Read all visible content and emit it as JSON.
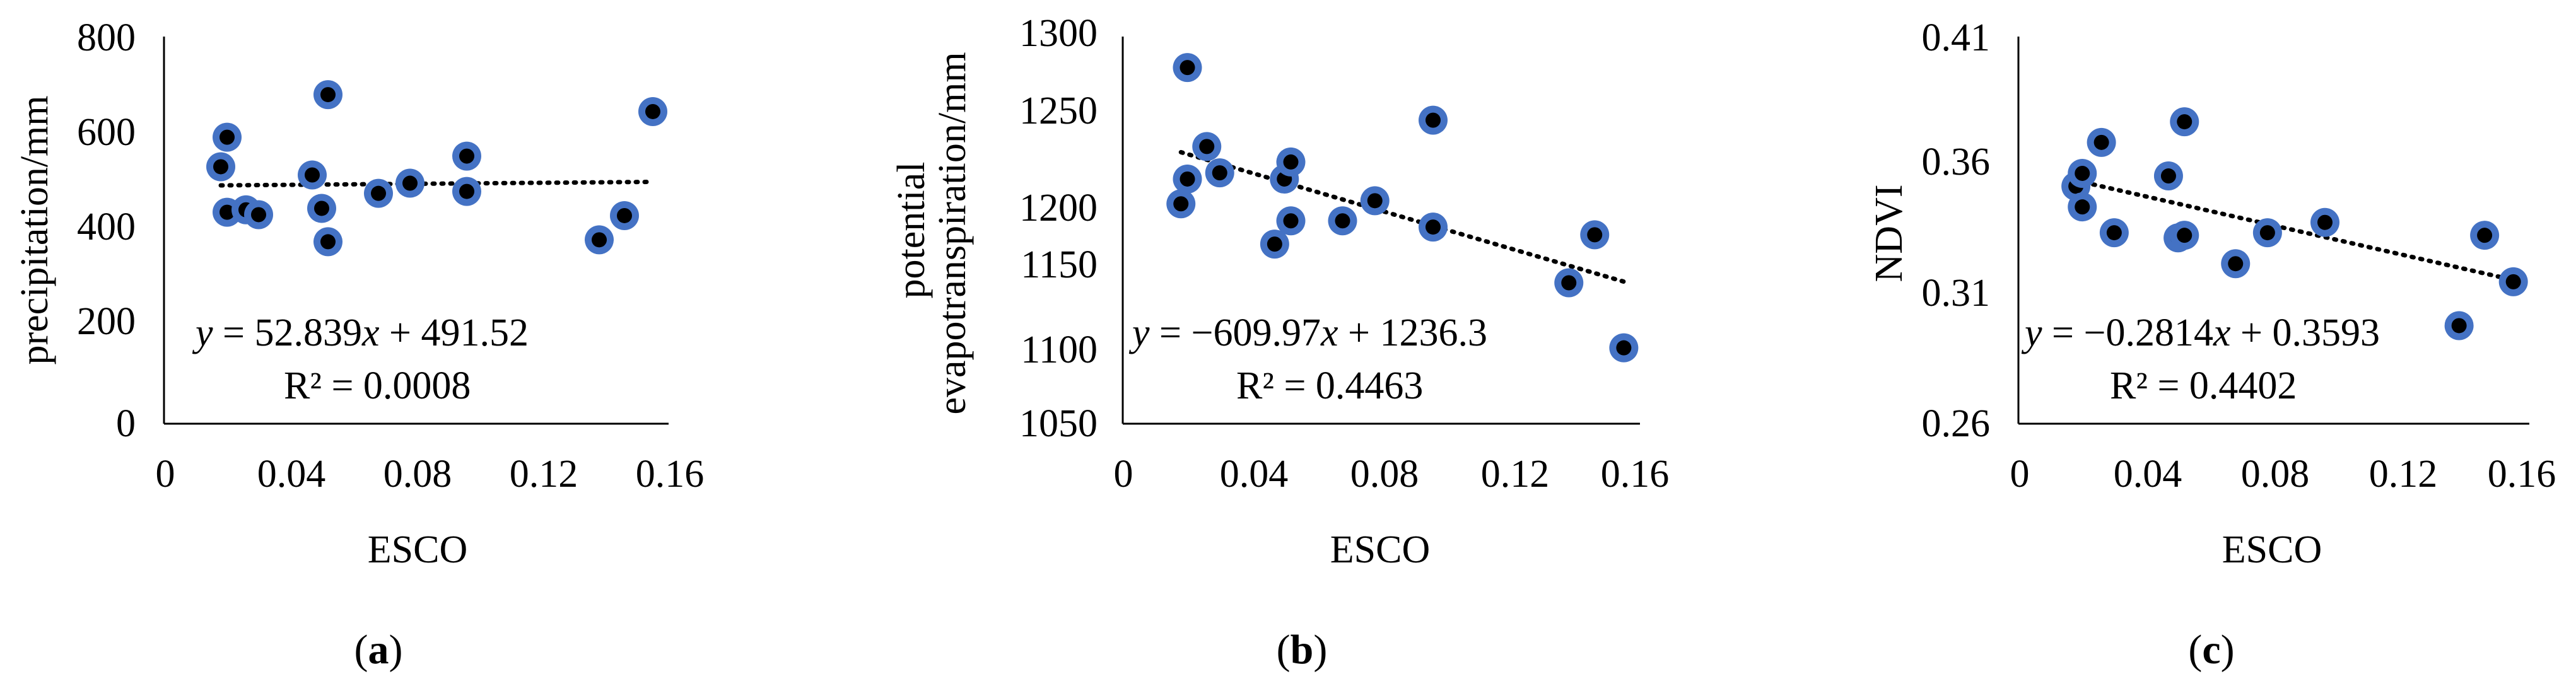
{
  "colors": {
    "marker_outer": "#4472C4",
    "marker_inner": "#000000",
    "text": "#000000"
  },
  "panels": [
    {
      "label": "a",
      "equation": {
        "y": "y",
        "rhs_1": " = 52.839",
        "x": "x",
        "rhs_2": " + 491.52"
      },
      "r2": "R² = 0.0008",
      "chart_data": {
        "type": "scatter",
        "xlabel": "ESCO",
        "ylabel": "precipitation/mm",
        "xlim": [
          0,
          0.16
        ],
        "ylim": [
          0,
          800
        ],
        "xticks": [
          0,
          0.04,
          0.08,
          0.12,
          0.16
        ],
        "xtick_labels": [
          "0",
          "0.04",
          "0.08",
          "0.12",
          "0.16"
        ],
        "yticks": [
          0,
          200,
          400,
          600,
          800
        ],
        "ytick_labels": [
          "0",
          "200",
          "400",
          "600",
          "800"
        ],
        "points": [
          [
            0.018,
            531
          ],
          [
            0.02,
            592
          ],
          [
            0.02,
            437
          ],
          [
            0.026,
            442
          ],
          [
            0.03,
            432
          ],
          [
            0.047,
            514
          ],
          [
            0.05,
            445
          ],
          [
            0.052,
            680
          ],
          [
            0.052,
            376
          ],
          [
            0.068,
            476
          ],
          [
            0.078,
            497
          ],
          [
            0.096,
            553
          ],
          [
            0.096,
            480
          ],
          [
            0.138,
            380
          ],
          [
            0.146,
            430
          ],
          [
            0.155,
            645
          ]
        ],
        "trendline": {
          "slope": 52.839,
          "intercept": 491.52,
          "x_range": [
            0.018,
            0.155
          ]
        }
      }
    },
    {
      "label": "b",
      "equation": {
        "y": "y",
        "rhs_1": " = −609.97",
        "x": "x",
        "rhs_2": " + 1236.3"
      },
      "r2": "R² = 0.4463",
      "chart_data": {
        "type": "scatter",
        "xlabel": "ESCO",
        "ylabel": "potential evapotranspiration/mm",
        "ylabel_lines": [
          "potential",
          "evapotranspiration/mm"
        ],
        "xlim": [
          0,
          0.16
        ],
        "ylim": [
          1050,
          1300
        ],
        "xticks": [
          0,
          0.04,
          0.08,
          0.12,
          0.16
        ],
        "xtick_labels": [
          "0",
          "0.04",
          "0.08",
          "0.12",
          "0.16"
        ],
        "yticks": [
          1050,
          1100,
          1150,
          1200,
          1250,
          1300
        ],
        "ytick_labels": [
          "1050",
          "1100",
          "1150",
          "1200",
          "1250",
          "1300"
        ],
        "points": [
          [
            0.018,
            1192
          ],
          [
            0.02,
            1208
          ],
          [
            0.02,
            1280
          ],
          [
            0.026,
            1229
          ],
          [
            0.03,
            1212
          ],
          [
            0.047,
            1166
          ],
          [
            0.05,
            1208
          ],
          [
            0.052,
            1219
          ],
          [
            0.052,
            1181
          ],
          [
            0.068,
            1181
          ],
          [
            0.078,
            1194
          ],
          [
            0.096,
            1246
          ],
          [
            0.096,
            1177
          ],
          [
            0.138,
            1141
          ],
          [
            0.146,
            1172
          ],
          [
            0.155,
            1099
          ]
        ],
        "trendline": {
          "slope": -609.97,
          "intercept": 1236.3,
          "x_range": [
            0.018,
            0.155
          ]
        }
      }
    },
    {
      "label": "c",
      "equation": {
        "y": "y",
        "rhs_1": " = −0.2814",
        "x": "x",
        "rhs_2": " + 0.3593"
      },
      "r2": "R² = 0.4402",
      "chart_data": {
        "type": "scatter",
        "xlabel": "ESCO",
        "ylabel": "NDVI",
        "xlim": [
          0,
          0.16
        ],
        "ylim": [
          0.26,
          0.41
        ],
        "xticks": [
          0,
          0.04,
          0.08,
          0.12,
          0.16
        ],
        "xtick_labels": [
          "0",
          "0.04",
          "0.08",
          "0.12",
          "0.16"
        ],
        "yticks": [
          0.26,
          0.31,
          0.36,
          0.41
        ],
        "ytick_labels": [
          "0.26",
          "0.31",
          "0.36",
          "0.41"
        ],
        "points": [
          [
            0.018,
            0.352
          ],
          [
            0.02,
            0.357
          ],
          [
            0.02,
            0.344
          ],
          [
            0.026,
            0.369
          ],
          [
            0.03,
            0.334
          ],
          [
            0.047,
            0.356
          ],
          [
            0.05,
            0.332
          ],
          [
            0.052,
            0.333
          ],
          [
            0.052,
            0.377
          ],
          [
            0.068,
            0.322
          ],
          [
            0.078,
            0.334
          ],
          [
            0.096,
            0.338
          ],
          [
            0.138,
            0.298
          ],
          [
            0.146,
            0.333
          ],
          [
            0.155,
            0.315
          ]
        ],
        "trendline": {
          "slope": -0.2814,
          "intercept": 0.3593,
          "x_range": [
            0.018,
            0.155
          ]
        }
      }
    }
  ]
}
